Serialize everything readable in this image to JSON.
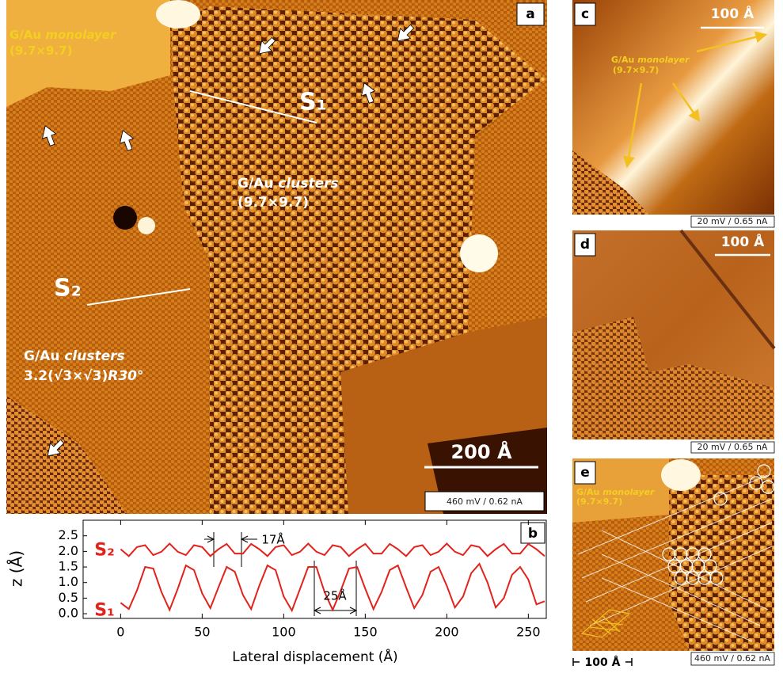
{
  "chart_data": {
    "type": "line",
    "label": "b",
    "xlabel": "Lateral displacement (Å)",
    "ylabel": "z (Å)",
    "xlim": [
      -23,
      261
    ],
    "ylim": [
      -0.1,
      2.95
    ],
    "xticks": [
      0,
      50,
      100,
      150,
      200,
      250
    ],
    "yticks": [
      {
        "value": 0,
        "label": "0.0"
      },
      0.5,
      {
        "value": 1,
        "label": "1.0"
      },
      1.5,
      {
        "value": 2,
        "label": "2.0"
      },
      2.5
    ],
    "x": [
      0,
      5,
      10,
      15,
      20,
      25,
      30,
      35,
      40,
      45,
      50,
      55,
      60,
      65,
      70,
      75,
      80,
      85,
      90,
      95,
      100,
      105,
      110,
      115,
      120,
      125,
      130,
      135,
      140,
      145,
      150,
      155,
      160,
      165,
      170,
      175,
      180,
      185,
      190,
      195,
      200,
      205,
      210,
      215,
      220,
      225,
      230,
      235,
      240,
      245,
      250,
      255,
      260
    ],
    "series": [
      {
        "name": "S₂",
        "color": "#e3221c",
        "values": [
          2.07,
          1.85,
          2.14,
          2.2,
          1.88,
          1.99,
          2.25,
          1.99,
          1.88,
          2.2,
          2.14,
          1.85,
          2.07,
          2.24,
          1.93,
          1.93,
          2.24,
          2.07,
          1.85,
          2.14,
          2.2,
          1.88,
          1.99,
          2.25,
          1.99,
          1.88,
          2.2,
          2.14,
          1.85,
          2.07,
          2.24,
          1.93,
          1.93,
          2.24,
          2.07,
          1.85,
          2.14,
          2.2,
          1.88,
          1.99,
          2.25,
          1.99,
          1.88,
          2.2,
          2.14,
          1.85,
          2.07,
          2.24,
          1.93,
          1.93,
          2.24,
          2.07,
          1.85
        ]
      },
      {
        "name": "S₁",
        "color": "#e3221c",
        "values": [
          0.35,
          0.15,
          0.75,
          1.5,
          1.45,
          0.7,
          0.12,
          0.8,
          1.55,
          1.4,
          0.65,
          0.18,
          0.85,
          1.5,
          1.35,
          0.6,
          0.15,
          0.9,
          1.55,
          1.4,
          0.55,
          0.1,
          0.8,
          1.5,
          1.5,
          0.7,
          0.12,
          0.75,
          1.45,
          1.5,
          0.8,
          0.15,
          0.7,
          1.4,
          1.55,
          0.85,
          0.18,
          0.6,
          1.35,
          1.5,
          0.9,
          0.2,
          0.55,
          1.3,
          1.6,
          1.0,
          0.2,
          0.5,
          1.25,
          1.5,
          1.1,
          0.3,
          0.4
        ]
      }
    ],
    "annotations": [
      "17Å",
      "25Å"
    ]
  },
  "panels": {
    "a": {
      "label": "a",
      "monolayer": [
        "G/Au",
        "monolayer",
        "(9.7×9.7)"
      ],
      "s1": "S₁",
      "s2": "S₂",
      "clusters_big": [
        "G/Au",
        "clusters",
        "(9.7×9.7)"
      ],
      "clusters_small": [
        "G/Au",
        "clusters",
        "3.2(√3×√3)",
        "R30°"
      ],
      "scale": "200 Å",
      "conditions": "460 mV / 0.62 nA"
    },
    "c": {
      "label": "c",
      "scale": "100 Å",
      "monolayer": [
        "G/Au",
        "monolayer",
        "(9.7×9.7)"
      ],
      "conditions": "20 mV / 0.65 nA"
    },
    "d": {
      "label": "d",
      "scale": "100 Å",
      "conditions": "20 mV / 0.65 nA"
    },
    "e": {
      "label": "e",
      "monolayer": [
        "G/Au",
        "monolayer",
        "(9.7×9.7)"
      ],
      "conditions": "460 mV / 0.62 nA",
      "scale": "100 Å"
    }
  }
}
